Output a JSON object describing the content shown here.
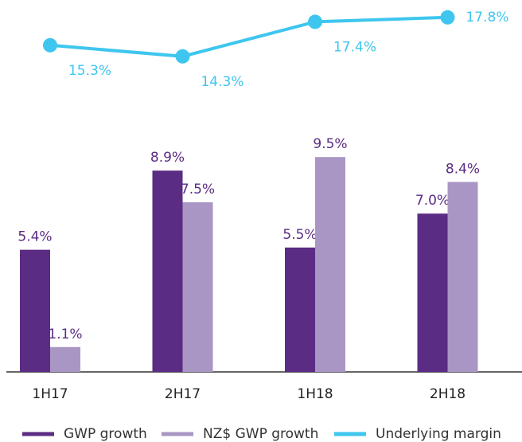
{
  "chart_data": {
    "type": "bar",
    "categories": [
      "1H17",
      "2H17",
      "1H18",
      "2H18"
    ],
    "series": [
      {
        "name": "GWP growth",
        "color": "#5b2c83",
        "values": [
          5.4,
          8.9,
          5.5,
          7.0
        ],
        "value_labels": [
          "5.4%",
          "8.9%",
          "5.5%",
          "7.0%"
        ]
      },
      {
        "name": "NZ$ GWP growth",
        "color": "#a996c4",
        "values": [
          1.1,
          7.5,
          9.5,
          8.4
        ],
        "value_labels": [
          "1.1%",
          "7.5%",
          "9.5%",
          "8.4%"
        ]
      },
      {
        "name": "Underlying margin",
        "color": "#3ec6ee",
        "type": "line",
        "axis": "y2",
        "values": [
          15.3,
          14.3,
          17.4,
          17.8
        ],
        "value_labels": [
          "15.3%",
          "14.3%",
          "17.4%",
          "17.8%"
        ]
      }
    ],
    "ylim": [
      0,
      10
    ],
    "y2lim": [
      13,
      19
    ],
    "legend": "bottom"
  }
}
